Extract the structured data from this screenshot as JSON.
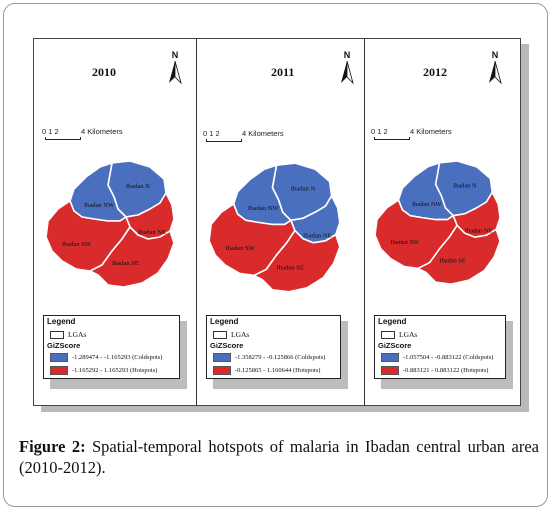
{
  "colors": {
    "coldspot": "#4a6fbf",
    "hotspot": "#d92b2b",
    "boundary": "#ffffff"
  },
  "panels": [
    {
      "year": "2010",
      "scale": {
        "ticks": "0 1 2",
        "unit": "4 Kilometers"
      },
      "north": "N",
      "lgas": [
        {
          "name": "Ibadan N",
          "class": "coldspot"
        },
        {
          "name": "Ibadan NW",
          "class": "coldspot"
        },
        {
          "name": "Ibadan NE",
          "class": "hotspot"
        },
        {
          "name": "Ibadan SW",
          "class": "hotspot"
        },
        {
          "name": "Ibadan SE",
          "class": "hotspot"
        }
      ],
      "legend": {
        "title": "Legend",
        "lgas_label": "LGAs",
        "gi_title": "GiZScore",
        "cold_label": "-1.289474 - -1.165293 (Coldspots)",
        "hot_label": "-1.165292 - 1.165293 (Hotspots)"
      }
    },
    {
      "year": "2011",
      "scale": {
        "ticks": "0 1 2",
        "unit": "4 Kilometers"
      },
      "north": "N",
      "lgas": [
        {
          "name": "Ibadan N",
          "class": "coldspot"
        },
        {
          "name": "Ibadan NW",
          "class": "coldspot"
        },
        {
          "name": "Ibadan NE",
          "class": "coldspot"
        },
        {
          "name": "Ibadan SW",
          "class": "hotspot"
        },
        {
          "name": "Ibadan SE",
          "class": "hotspot"
        }
      ],
      "legend": {
        "title": "Legend",
        "lgas_label": "LGAs",
        "gi_title": "GiZScore",
        "cold_label": "-1.358279 - -0.125866 (Coldspots)",
        "hot_label": "-0.125865 - 1.160644 (Hotspots)"
      }
    },
    {
      "year": "2012",
      "scale": {
        "ticks": "0 1 2",
        "unit": "4 Kilometers"
      },
      "north": "N",
      "lgas": [
        {
          "name": "Ibadan N",
          "class": "coldspot"
        },
        {
          "name": "Ibadan NW",
          "class": "coldspot"
        },
        {
          "name": "Ibadan NE",
          "class": "hotspot"
        },
        {
          "name": "Ibadan SW",
          "class": "hotspot"
        },
        {
          "name": "Ibadan SE",
          "class": "hotspot"
        }
      ],
      "legend": {
        "title": "Legend",
        "lgas_label": "LGAs",
        "gi_title": "GiZScore",
        "cold_label": "-1.057504 - -0.883122 (Coldspots)",
        "hot_label": "-0.883121 - 0.883122 (Hotspots)"
      }
    }
  ],
  "caption": {
    "label": "Figure 2:",
    "text": " Spatial-temporal hotspots of malaria in Ibadan central urban area (2010-2012)."
  }
}
